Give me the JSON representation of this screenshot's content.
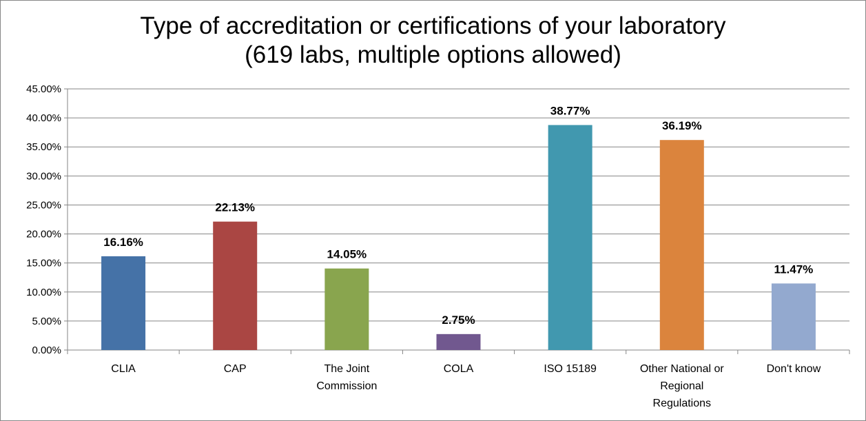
{
  "chart_data": {
    "type": "bar",
    "title": [
      "Type of accreditation or certifications of your laboratory",
      "(619 labs, multiple options allowed)"
    ],
    "categories": [
      [
        "CLIA"
      ],
      [
        "CAP"
      ],
      [
        "The Joint",
        "Commission"
      ],
      [
        "COLA"
      ],
      [
        "ISO 15189"
      ],
      [
        "Other National or",
        "Regional",
        "Regulations"
      ],
      [
        "Don't know"
      ]
    ],
    "values": [
      16.16,
      22.13,
      14.05,
      2.75,
      38.77,
      36.19,
      11.47
    ],
    "data_labels": [
      "16.16%",
      "22.13%",
      "14.05%",
      "2.75%",
      "38.77%",
      "36.19%",
      "11.47%"
    ],
    "colors": [
      "#4572A7",
      "#AA4643",
      "#89A54E",
      "#71588F",
      "#4198AF",
      "#DB843D",
      "#93A9CF"
    ],
    "ylim": [
      0,
      45
    ],
    "yticks": [
      "0.00%",
      "5.00%",
      "10.00%",
      "15.00%",
      "20.00%",
      "25.00%",
      "30.00%",
      "35.00%",
      "40.00%",
      "45.00%"
    ],
    "grid": true,
    "legend": "none",
    "xlabel": "",
    "ylabel": ""
  }
}
